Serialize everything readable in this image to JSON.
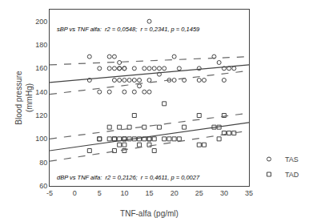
{
  "chart_data": {
    "type": "scatter",
    "xlabel": "TNF-alfa (pg/ml)",
    "ylabel": "Blood pressure\n(mmHg)",
    "xlim": [
      -5,
      35
    ],
    "ylim": [
      60,
      210
    ],
    "xticks": [
      -5,
      0,
      5,
      10,
      15,
      20,
      25,
      30,
      35
    ],
    "yticks": [
      60,
      80,
      100,
      120,
      140,
      160,
      180,
      200
    ],
    "grid": false,
    "legend": "lower right",
    "annotations": [
      "sBP vs TNF alfa:  r2 = 0,0548;  r = 0,2341, p = 0,1459",
      "dBP vs TNF alfa:  r2 = 0,2126;  r = 0,4611, p = 0,0027"
    ],
    "series": [
      {
        "name": "TAS",
        "type": "scatter",
        "marker": "circle",
        "color": "#444444",
        "x": [
          3,
          3,
          5,
          5,
          7,
          7,
          7,
          8,
          8,
          8,
          9,
          9,
          9,
          9,
          10,
          10,
          10,
          10,
          11,
          12,
          12,
          12,
          13,
          13,
          14,
          14,
          15,
          15,
          15,
          15,
          16,
          17,
          17,
          18,
          19,
          20,
          20,
          21,
          22,
          25,
          25,
          26,
          28,
          29,
          30,
          30,
          31,
          32
        ],
        "values": [
          150,
          170,
          140,
          160,
          140,
          160,
          170,
          150,
          160,
          170,
          150,
          160,
          160,
          165,
          140,
          150,
          160,
          160,
          150,
          140,
          150,
          160,
          145,
          150,
          140,
          160,
          140,
          150,
          160,
          200,
          160,
          155,
          160,
          160,
          150,
          150,
          170,
          160,
          150,
          150,
          160,
          150,
          170,
          165,
          150,
          160,
          160,
          160
        ]
      },
      {
        "name": "TAD",
        "type": "scatter",
        "marker": "square",
        "color": "#444444",
        "x": [
          3,
          5,
          5,
          7,
          7,
          8,
          8,
          8,
          9,
          9,
          9,
          10,
          10,
          10,
          10,
          11,
          11,
          12,
          12,
          13,
          13,
          14,
          14,
          15,
          15,
          15,
          16,
          16,
          17,
          18,
          18,
          19,
          20,
          21,
          22,
          25,
          25,
          26,
          28,
          29,
          29,
          30,
          30,
          31,
          32
        ],
        "values": [
          90,
          100,
          100,
          100,
          110,
          90,
          100,
          100,
          95,
          100,
          110,
          90,
          95,
          100,
          100,
          100,
          110,
          100,
          120,
          95,
          100,
          100,
          110,
          95,
          100,
          100,
          90,
          100,
          110,
          100,
          130,
          100,
          100,
          100,
          110,
          95,
          120,
          95,
          110,
          100,
          110,
          105,
          120,
          105,
          105
        ]
      },
      {
        "type": "line",
        "line_style": "solid",
        "color": "#444444",
        "x": [
          -5,
          35
        ],
        "values": [
          148,
          163
        ]
      },
      {
        "type": "line",
        "line_style": "dashed",
        "color": "#666666",
        "x": [
          -5,
          35
        ],
        "values": [
          163,
          170
        ]
      },
      {
        "type": "line",
        "line_style": "dashed",
        "color": "#666666",
        "x": [
          -5,
          35
        ],
        "values": [
          138,
          158
        ]
      },
      {
        "type": "line",
        "line_style": "solid",
        "color": "#444444",
        "x": [
          -5,
          35
        ],
        "values": [
          90,
          114
        ]
      },
      {
        "type": "line",
        "line_style": "dashed",
        "color": "#666666",
        "x": [
          -5,
          35
        ],
        "values": [
          100,
          122
        ]
      },
      {
        "type": "line",
        "line_style": "dashed",
        "color": "#666666",
        "x": [
          -5,
          35
        ],
        "values": [
          81,
          107
        ]
      }
    ]
  }
}
